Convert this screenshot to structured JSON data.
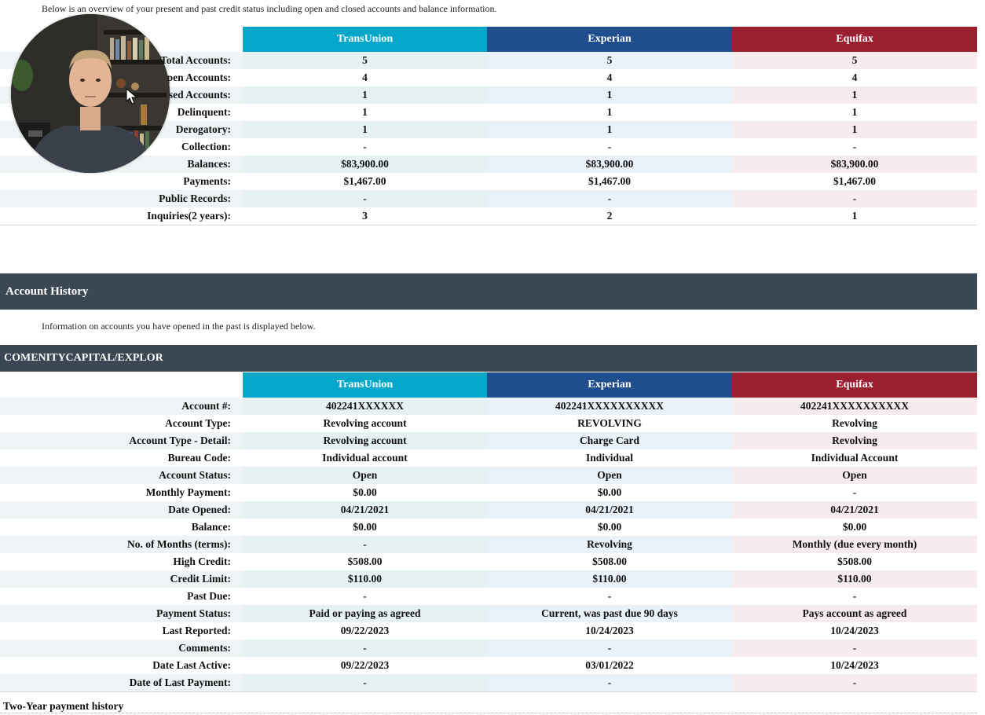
{
  "colors": {
    "transunion": "#05a7c8",
    "experian": "#1f4e8f",
    "equifax": "#9a1f2f",
    "section_bar": "#3b4752",
    "tint_transunion": "#e6f1f3",
    "tint_experian": "#e9f1f9",
    "tint_equifax": "#f6ebed"
  },
  "summary": {
    "intro": "Below is an overview of your present and past credit status including open and closed accounts and balance information.",
    "columns": [
      "TransUnion",
      "Experian",
      "Equifax"
    ],
    "rows": [
      {
        "label": "Total Accounts:",
        "values": [
          "5",
          "5",
          "5"
        ]
      },
      {
        "label": "Open Accounts:",
        "values": [
          "4",
          "4",
          "4"
        ]
      },
      {
        "label": "Closed Accounts:",
        "values": [
          "1",
          "1",
          "1"
        ]
      },
      {
        "label": "Delinquent:",
        "values": [
          "1",
          "1",
          "1"
        ]
      },
      {
        "label": "Derogatory:",
        "values": [
          "1",
          "1",
          "1"
        ]
      },
      {
        "label": "Collection:",
        "values": [
          "-",
          "-",
          "-"
        ]
      },
      {
        "label": "Balances:",
        "values": [
          "$83,900.00",
          "$83,900.00",
          "$83,900.00"
        ]
      },
      {
        "label": "Payments:",
        "values": [
          "$1,467.00",
          "$1,467.00",
          "$1,467.00"
        ]
      },
      {
        "label": "Public Records:",
        "values": [
          "-",
          "-",
          "-"
        ]
      },
      {
        "label": "Inquiries(2 years):",
        "values": [
          "3",
          "2",
          "1"
        ]
      }
    ]
  },
  "account_history": {
    "title": "Account History",
    "info": "Information on accounts you have opened in the past is displayed below.",
    "account": {
      "name": "COMENITYCAPITAL/EXPLOR",
      "columns": [
        "TransUnion",
        "Experian",
        "Equifax"
      ],
      "rows": [
        {
          "label": "Account #:",
          "values": [
            "402241XXXXXX",
            "402241XXXXXXXXXX",
            "402241XXXXXXXXXX"
          ]
        },
        {
          "label": "Account Type:",
          "values": [
            "Revolving account",
            "REVOLVING",
            "Revolving"
          ]
        },
        {
          "label": "Account Type - Detail:",
          "values": [
            "Revolving account",
            "Charge Card",
            "Revolving"
          ]
        },
        {
          "label": "Bureau Code:",
          "values": [
            "Individual account",
            "Individual",
            "Individual Account"
          ]
        },
        {
          "label": "Account Status:",
          "values": [
            "Open",
            "Open",
            "Open"
          ]
        },
        {
          "label": "Monthly Payment:",
          "values": [
            "$0.00",
            "$0.00",
            "-"
          ]
        },
        {
          "label": "Date Opened:",
          "values": [
            "04/21/2021",
            "04/21/2021",
            "04/21/2021"
          ]
        },
        {
          "label": "Balance:",
          "values": [
            "$0.00",
            "$0.00",
            "$0.00"
          ]
        },
        {
          "label": "No. of Months (terms):",
          "values": [
            "-",
            "Revolving",
            "Monthly (due every month)"
          ]
        },
        {
          "label": "High Credit:",
          "values": [
            "$508.00",
            "$508.00",
            "$508.00"
          ]
        },
        {
          "label": "Credit Limit:",
          "values": [
            "$110.00",
            "$110.00",
            "$110.00"
          ]
        },
        {
          "label": "Past Due:",
          "values": [
            "-",
            "-",
            "-"
          ]
        },
        {
          "label": "Payment Status:",
          "values": [
            "Paid or paying as agreed",
            "Current, was past due 90 days",
            "Pays account as agreed"
          ]
        },
        {
          "label": "Last Reported:",
          "values": [
            "09/22/2023",
            "10/24/2023",
            "10/24/2023"
          ]
        },
        {
          "label": "Comments:",
          "values": [
            "-",
            "-",
            "-"
          ]
        },
        {
          "label": "Date Last Active:",
          "values": [
            "09/22/2023",
            "03/01/2022",
            "10/24/2023"
          ]
        },
        {
          "label": "Date of Last Payment:",
          "values": [
            "-",
            "-",
            "-"
          ]
        }
      ]
    },
    "payment_history_title": "Two-Year payment history"
  },
  "overlay": {
    "webcam_icon": "presenter-webcam",
    "cursor_icon": "mouse-pointer-icon"
  }
}
